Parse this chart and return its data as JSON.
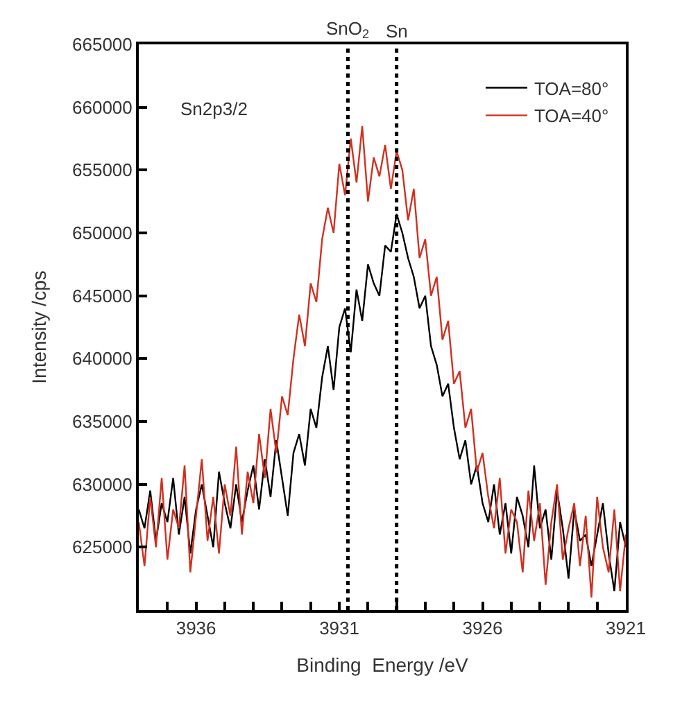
{
  "chart_data": {
    "type": "line",
    "xlabel": "Binding  Energy /eV",
    "ylabel": "Intensity /cps",
    "annotations": [
      "Sn2p3/2"
    ],
    "x": [
      3938.0,
      3937.8,
      3937.6,
      3937.4,
      3937.2,
      3937.0,
      3936.8,
      3936.6,
      3936.4,
      3936.2,
      3936.0,
      3935.8,
      3935.6,
      3935.4,
      3935.2,
      3935.0,
      3934.8,
      3934.6,
      3934.4,
      3934.2,
      3934.0,
      3933.8,
      3933.6,
      3933.4,
      3933.2,
      3933.0,
      3932.8,
      3932.6,
      3932.4,
      3932.2,
      3932.0,
      3931.8,
      3931.6,
      3931.4,
      3931.2,
      3931.0,
      3930.8,
      3930.6,
      3930.4,
      3930.2,
      3930.0,
      3929.8,
      3929.6,
      3929.4,
      3929.2,
      3929.0,
      3928.8,
      3928.6,
      3928.4,
      3928.2,
      3928.0,
      3927.8,
      3927.6,
      3927.4,
      3927.2,
      3927.0,
      3926.8,
      3926.6,
      3926.4,
      3926.2,
      3926.0,
      3925.8,
      3925.6,
      3925.4,
      3925.2,
      3925.0,
      3924.8,
      3924.6,
      3924.4,
      3924.2,
      3924.0,
      3923.8,
      3923.6,
      3923.4,
      3923.2,
      3923.0,
      3922.8,
      3922.6,
      3922.4,
      3922.2,
      3922.0,
      3921.8,
      3921.6,
      3921.4,
      3921.2,
      3921.0
    ],
    "series": [
      {
        "name": "TOA=80°",
        "color": "#000000",
        "values": [
          628000,
          626500,
          629500,
          625500,
          628500,
          627000,
          630500,
          626000,
          629000,
          624500,
          628000,
          630000,
          627500,
          625000,
          631000,
          628500,
          626500,
          630000,
          627000,
          629500,
          631500,
          628000,
          632000,
          629000,
          633500,
          630500,
          627500,
          632500,
          634000,
          631500,
          636000,
          634500,
          638500,
          641000,
          637500,
          642500,
          644000,
          640500,
          645500,
          643000,
          647500,
          646000,
          645000,
          649000,
          648500,
          651500,
          650000,
          648000,
          646500,
          644000,
          645000,
          641000,
          639500,
          637000,
          638000,
          634500,
          632000,
          633500,
          630000,
          631500,
          628500,
          627000,
          630000,
          626000,
          628500,
          624500,
          629000,
          627500,
          625000,
          631500,
          626500,
          628000,
          624000,
          629500,
          626500,
          622500,
          628000,
          625500,
          626000,
          623500,
          626000,
          628500,
          624500,
          621500,
          627000,
          625000
        ]
      },
      {
        "name": "TOA=40°",
        "color": "#d03020",
        "values": [
          627000,
          623500,
          629000,
          625000,
          630500,
          624000,
          628000,
          626500,
          631500,
          623000,
          627500,
          632000,
          625500,
          629000,
          624500,
          630000,
          627500,
          633000,
          626000,
          631000,
          628500,
          634000,
          630500,
          636000,
          632500,
          637000,
          635500,
          640000,
          643500,
          641000,
          646000,
          644500,
          649500,
          652000,
          650000,
          655500,
          653000,
          657500,
          654000,
          658500,
          652500,
          656000,
          654500,
          657000,
          653500,
          656500,
          655000,
          651000,
          653500,
          648000,
          649500,
          645000,
          646500,
          641500,
          643000,
          638000,
          639000,
          634500,
          636000,
          631000,
          632500,
          629000,
          626500,
          630500,
          624500,
          628000,
          627000,
          623000,
          629500,
          625500,
          628500,
          622000,
          627000,
          630000,
          624000,
          626500,
          628500,
          623500,
          627500,
          621000,
          629000,
          625000,
          623000,
          628000,
          621500,
          626000
        ]
      }
    ],
    "xlim": [
      3938,
      3921
    ],
    "xticks": [
      {
        "value": 3938,
        "label": null
      },
      {
        "value": 3937,
        "label": null
      },
      3936,
      {
        "value": 3935,
        "label": null
      },
      {
        "value": 3934,
        "label": null
      },
      {
        "value": 3933,
        "label": null
      },
      {
        "value": 3932,
        "label": null
      },
      3931,
      {
        "value": 3930,
        "label": null
      },
      {
        "value": 3929,
        "label": null
      },
      {
        "value": 3928,
        "label": null
      },
      {
        "value": 3927,
        "label": null
      },
      3926,
      {
        "value": 3925,
        "label": null
      },
      {
        "value": 3924,
        "label": null
      },
      {
        "value": 3923,
        "label": null
      },
      {
        "value": 3922,
        "label": null
      },
      3921
    ],
    "ylim": [
      620000,
      665000
    ],
    "yticks": [
      625000,
      630000,
      635000,
      640000,
      645000,
      650000,
      655000,
      660000,
      665000
    ],
    "ref_lines": [
      {
        "axis": "x",
        "value": 3930.7,
        "label": "SnO$_{2}$",
        "color": "#000000",
        "line_style": "dotted"
      },
      {
        "axis": "x",
        "value": 3929.0,
        "label": "Sn",
        "color": "#000000",
        "line_style": "dotted"
      }
    ],
    "grid": false,
    "legend": "top right",
    "marker": "none",
    "line_style": "solid"
  }
}
